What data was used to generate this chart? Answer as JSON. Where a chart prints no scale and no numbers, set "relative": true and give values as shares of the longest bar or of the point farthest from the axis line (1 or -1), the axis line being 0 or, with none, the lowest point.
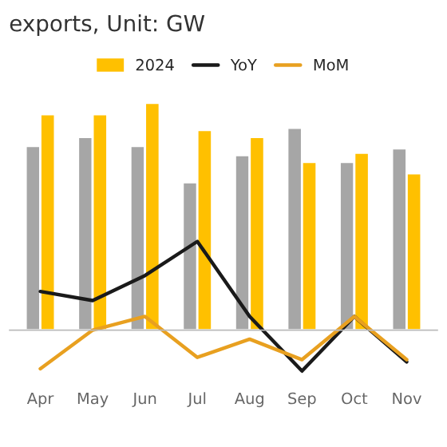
{
  "chart_data": {
    "type": "bar",
    "title": "exports, Unit: GW",
    "relative": true,
    "categories": [
      "Apr",
      "May",
      "Jun",
      "Jul",
      "Aug",
      "Sep",
      "Oct",
      "Nov"
    ],
    "series": [
      {
        "color": "#a6a6a6",
        "values": [
          0.81,
          0.85,
          0.81,
          0.65,
          0.77,
          0.89,
          0.74,
          0.8
        ]
      },
      {
        "name": "2024",
        "color": "#ffc000",
        "values": [
          0.95,
          0.95,
          1.0,
          0.88,
          0.85,
          0.74,
          0.78,
          0.69
        ]
      },
      {
        "name": "YoY",
        "type": "line",
        "color": "#1a1a1a",
        "values": [
          0.17,
          0.13,
          0.24,
          0.39,
          0.06,
          -0.18,
          0.06,
          -0.14
        ]
      },
      {
        "name": "MoM",
        "type": "line",
        "color": "#e8a020",
        "values": [
          -0.17,
          0.0,
          0.06,
          -0.12,
          -0.04,
          -0.13,
          0.06,
          -0.13
        ]
      }
    ],
    "legend": "top"
  }
}
